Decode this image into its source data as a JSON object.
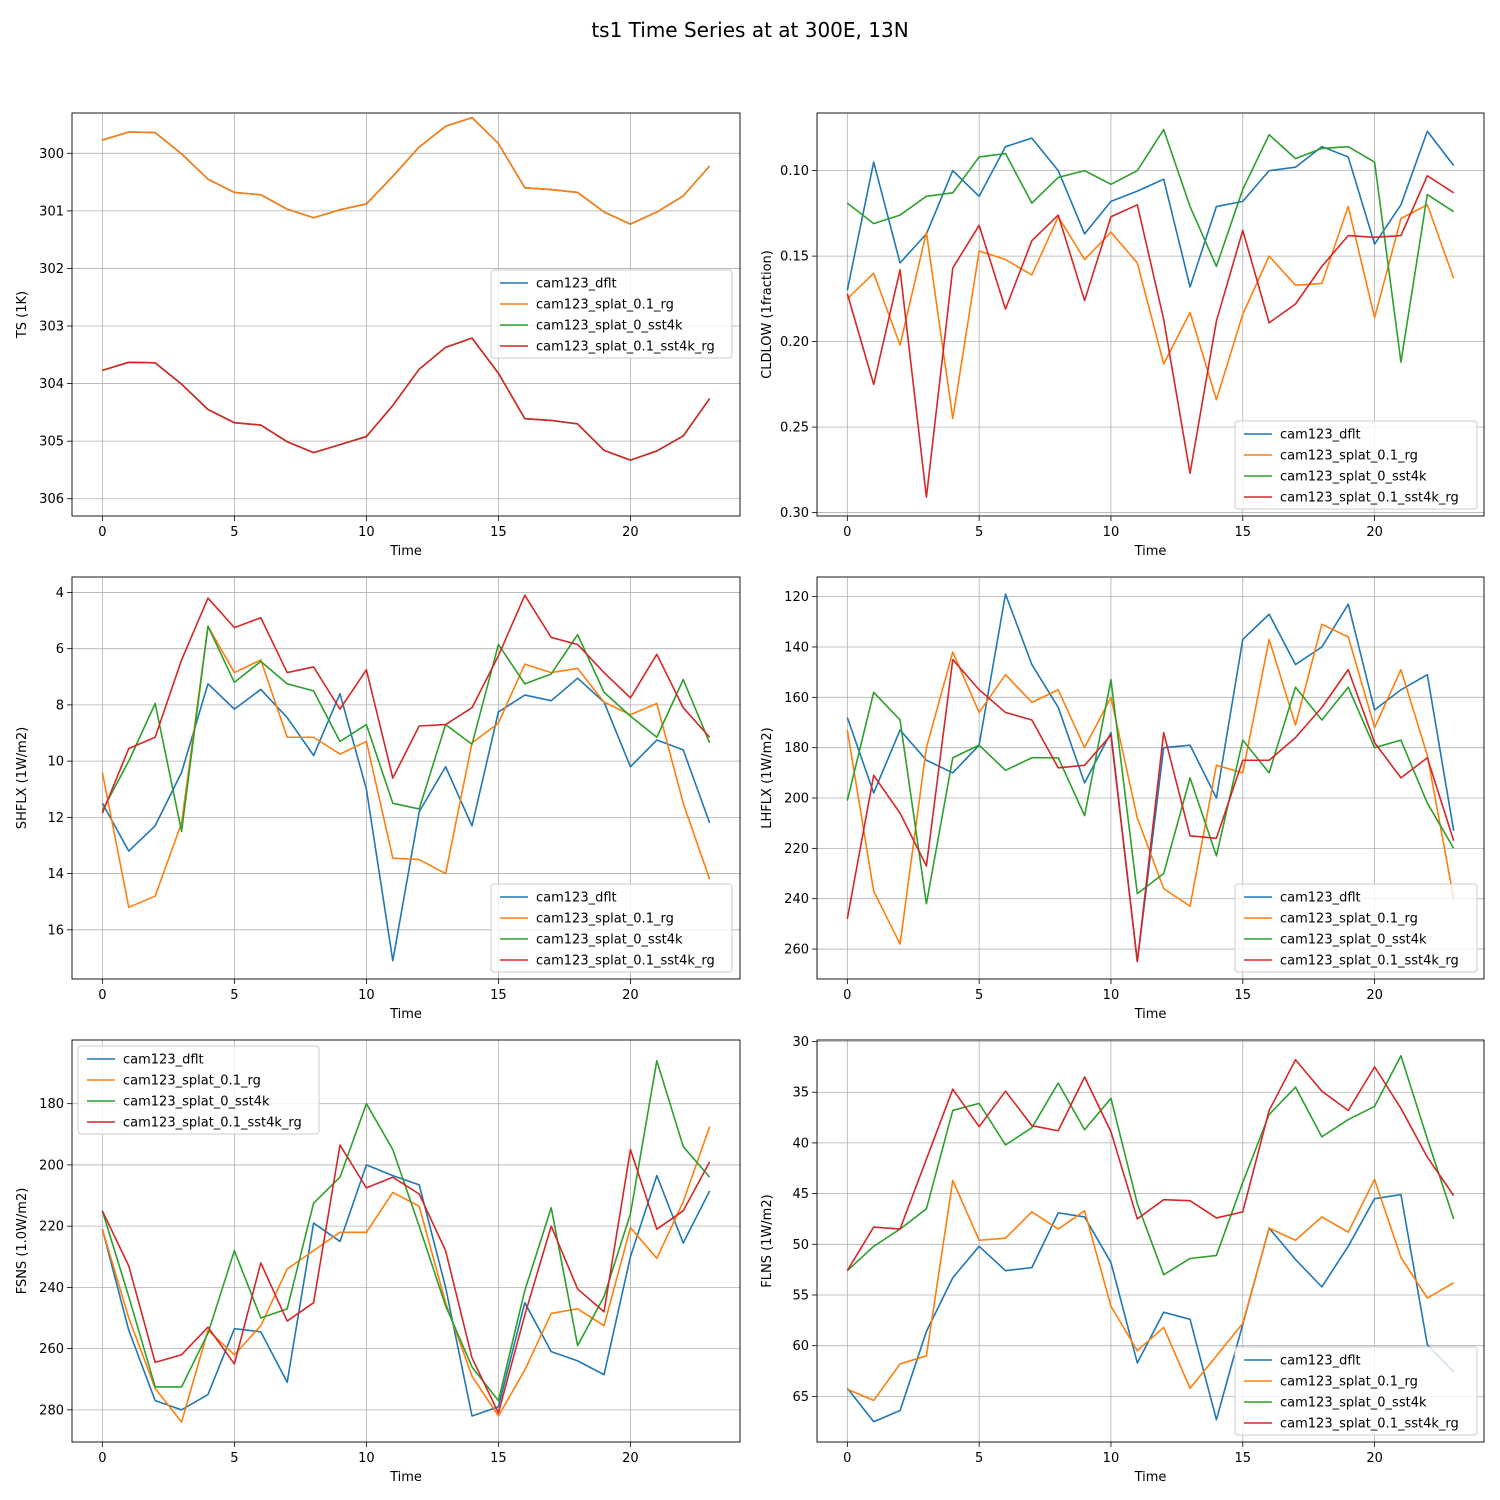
{
  "figure": {
    "title": "ts1 Time Series at at 300E, 13N"
  },
  "colors": {
    "cam123_dflt": "#1f77b4",
    "cam123_splat_0.1_rg": "#ff7f0e",
    "cam123_splat_0_sst4k": "#2ca02c",
    "cam123_splat_0.1_sst4k_rg": "#d62728"
  },
  "chart_data": [
    {
      "type": "line",
      "title": "",
      "xlabel": "Time",
      "ylabel": "TS (1K)",
      "x": [
        0,
        1,
        2,
        3,
        4,
        5,
        6,
        7,
        8,
        9,
        10,
        11,
        12,
        13,
        14,
        15,
        16,
        17,
        18,
        19,
        20,
        21,
        22,
        23
      ],
      "xlim": [
        -1.15,
        24.15
      ],
      "ylim": [
        306.3,
        299.3
      ],
      "y_inverted": true,
      "xticks": [
        0,
        5,
        10,
        15,
        20
      ],
      "yticks": [
        300,
        301,
        302,
        303,
        304,
        305,
        306
      ],
      "grid": true,
      "legend_loc": "center-right",
      "series": [
        {
          "name": "cam123_dflt",
          "values": [
            299.77,
            299.63,
            299.64,
            300.01,
            300.45,
            300.68,
            300.72,
            300.97,
            301.12,
            300.98,
            300.88,
            300.4,
            299.89,
            299.53,
            299.38,
            299.83,
            300.6,
            300.63,
            300.68,
            301.02,
            301.23,
            301.02,
            300.74,
            300.22
          ]
        },
        {
          "name": "cam123_splat_0.1_rg",
          "values": [
            299.77,
            299.63,
            299.64,
            300.01,
            300.45,
            300.68,
            300.72,
            300.97,
            301.12,
            300.98,
            300.88,
            300.4,
            299.89,
            299.53,
            299.38,
            299.83,
            300.6,
            300.63,
            300.68,
            301.02,
            301.23,
            301.02,
            300.74,
            300.22
          ]
        },
        {
          "name": "cam123_splat_0_sst4k",
          "values": [
            303.77,
            303.63,
            303.64,
            304.01,
            304.45,
            304.68,
            304.72,
            305.01,
            305.2,
            305.06,
            304.92,
            304.38,
            303.75,
            303.37,
            303.21,
            303.82,
            304.61,
            304.64,
            304.7,
            305.16,
            305.33,
            305.17,
            304.91,
            304.26
          ]
        },
        {
          "name": "cam123_splat_0.1_sst4k_rg",
          "values": [
            303.77,
            303.63,
            303.64,
            304.01,
            304.45,
            304.68,
            304.72,
            305.01,
            305.2,
            305.06,
            304.92,
            304.38,
            303.75,
            303.37,
            303.21,
            303.82,
            304.61,
            304.64,
            304.7,
            305.16,
            305.33,
            305.17,
            304.91,
            304.26
          ]
        }
      ]
    },
    {
      "type": "line",
      "title": "",
      "xlabel": "Time",
      "ylabel": "CLDLOW (1fraction)",
      "x": [
        0,
        1,
        2,
        3,
        4,
        5,
        6,
        7,
        8,
        9,
        10,
        11,
        12,
        13,
        14,
        15,
        16,
        17,
        18,
        19,
        20,
        21,
        22,
        23
      ],
      "xlim": [
        -1.15,
        24.15
      ],
      "ylim": [
        0.302,
        0.0663
      ],
      "y_inverted": true,
      "xticks": [
        0,
        5,
        10,
        15,
        20
      ],
      "yticks": [
        0.1,
        0.15,
        0.2,
        0.25,
        0.3
      ],
      "grid": true,
      "legend_loc": "lower-right",
      "series": [
        {
          "name": "cam123_dflt",
          "values": [
            0.17,
            0.095,
            0.154,
            0.137,
            0.1,
            0.115,
            0.086,
            0.081,
            0.1,
            0.137,
            0.118,
            0.112,
            0.105,
            0.168,
            0.121,
            0.118,
            0.1,
            0.098,
            0.086,
            0.092,
            0.143,
            0.12,
            0.077,
            0.097
          ]
        },
        {
          "name": "cam123_splat_0.1_rg",
          "values": [
            0.175,
            0.16,
            0.202,
            0.136,
            0.245,
            0.147,
            0.152,
            0.161,
            0.127,
            0.152,
            0.136,
            0.154,
            0.213,
            0.183,
            0.234,
            0.184,
            0.15,
            0.167,
            0.166,
            0.121,
            0.186,
            0.128,
            0.12,
            0.163
          ]
        },
        {
          "name": "cam123_splat_0_sst4k",
          "values": [
            0.119,
            0.131,
            0.126,
            0.115,
            0.113,
            0.092,
            0.09,
            0.119,
            0.104,
            0.1,
            0.108,
            0.1,
            0.076,
            0.121,
            0.156,
            0.111,
            0.079,
            0.093,
            0.087,
            0.086,
            0.095,
            0.212,
            0.114,
            0.124
          ]
        },
        {
          "name": "cam123_splat_0.1_sst4k_rg",
          "values": [
            0.172,
            0.225,
            0.158,
            0.291,
            0.157,
            0.132,
            0.181,
            0.141,
            0.126,
            0.176,
            0.127,
            0.12,
            0.187,
            0.277,
            0.188,
            0.135,
            0.189,
            0.178,
            0.156,
            0.138,
            0.139,
            0.138,
            0.103,
            0.113
          ]
        }
      ]
    },
    {
      "type": "line",
      "title": "",
      "xlabel": "Time",
      "ylabel": "SHFLX (1W/m2)",
      "x": [
        0,
        1,
        2,
        3,
        4,
        5,
        6,
        7,
        8,
        9,
        10,
        11,
        12,
        13,
        14,
        15,
        16,
        17,
        18,
        19,
        20,
        21,
        22,
        23
      ],
      "xlim": [
        -1.15,
        24.15
      ],
      "ylim": [
        17.75,
        3.45
      ],
      "y_inverted": true,
      "xticks": [
        0,
        5,
        10,
        15,
        20
      ],
      "yticks": [
        4,
        6,
        8,
        10,
        12,
        14,
        16
      ],
      "grid": true,
      "legend_loc": "lower-right",
      "series": [
        {
          "name": "cam123_dflt",
          "values": [
            11.5,
            13.2,
            12.3,
            10.4,
            7.25,
            8.15,
            7.45,
            8.45,
            9.8,
            7.6,
            11.0,
            17.1,
            11.8,
            10.2,
            12.3,
            8.25,
            7.65,
            7.85,
            7.05,
            7.9,
            10.2,
            9.25,
            9.6,
            12.2
          ]
        },
        {
          "name": "cam123_splat_0.1_rg",
          "values": [
            10.4,
            15.2,
            14.8,
            12.2,
            5.2,
            6.85,
            6.4,
            9.15,
            9.15,
            9.75,
            9.3,
            13.45,
            13.5,
            14.0,
            9.35,
            8.65,
            6.55,
            6.85,
            6.7,
            7.9,
            8.35,
            7.95,
            11.5,
            14.2
          ]
        },
        {
          "name": "cam123_splat_0_sst4k",
          "values": [
            11.75,
            10.0,
            7.95,
            12.5,
            5.2,
            7.2,
            6.45,
            7.25,
            7.5,
            9.3,
            8.7,
            11.5,
            11.7,
            8.7,
            9.4,
            5.85,
            7.25,
            6.9,
            5.5,
            7.55,
            8.4,
            9.15,
            7.1,
            9.35
          ]
        },
        {
          "name": "cam123_splat_0.1_sst4k_rg",
          "values": [
            11.85,
            9.55,
            9.15,
            6.4,
            4.2,
            5.25,
            4.9,
            6.85,
            6.65,
            8.15,
            6.75,
            10.6,
            8.75,
            8.7,
            8.1,
            6.25,
            4.1,
            5.6,
            5.85,
            6.85,
            7.75,
            6.2,
            8.1,
            9.15
          ]
        }
      ]
    },
    {
      "type": "line",
      "title": "",
      "xlabel": "Time",
      "ylabel": "LHFLX (1W/m2)",
      "x": [
        0,
        1,
        2,
        3,
        4,
        5,
        6,
        7,
        8,
        9,
        10,
        11,
        12,
        13,
        14,
        15,
        16,
        17,
        18,
        19,
        20,
        21,
        22,
        23
      ],
      "xlim": [
        -1.15,
        24.15
      ],
      "ylim": [
        271.9,
        112.2
      ],
      "y_inverted": true,
      "xticks": [
        0,
        5,
        10,
        15,
        20
      ],
      "yticks": [
        120,
        140,
        160,
        180,
        200,
        220,
        240,
        260
      ],
      "grid": true,
      "legend_loc": "lower-right",
      "series": [
        {
          "name": "cam123_dflt",
          "values": [
            168,
            198,
            173,
            185,
            190,
            179,
            119,
            147,
            164,
            194,
            174,
            265,
            180,
            179,
            200,
            137,
            127,
            147,
            140,
            123,
            165,
            157,
            151,
            213
          ]
        },
        {
          "name": "cam123_splat_0.1_rg",
          "values": [
            173,
            237,
            258,
            180,
            142,
            166,
            151,
            162,
            157,
            180,
            160,
            208,
            236,
            243,
            187,
            190,
            137,
            171,
            131,
            136,
            172,
            149,
            183,
            240
          ]
        },
        {
          "name": "cam123_splat_0_sst4k",
          "values": [
            201,
            158,
            169,
            242,
            184,
            179,
            189,
            184,
            184,
            207,
            153,
            238,
            230,
            192,
            223,
            177,
            190,
            156,
            169,
            156,
            180,
            177,
            202,
            220
          ]
        },
        {
          "name": "cam123_splat_0.1_sst4k_rg",
          "values": [
            248,
            191,
            206,
            227,
            145,
            157,
            166,
            169,
            188,
            187,
            175,
            265,
            174,
            215,
            216,
            185,
            185,
            176,
            164,
            149,
            178,
            192,
            184,
            217
          ]
        }
      ]
    },
    {
      "type": "line",
      "title": "",
      "xlabel": "Time",
      "ylabel": "FSNS (1.0W/m2)",
      "x": [
        0,
        1,
        2,
        3,
        4,
        5,
        6,
        7,
        8,
        9,
        10,
        11,
        12,
        13,
        14,
        15,
        16,
        17,
        18,
        19,
        20,
        21,
        22,
        23
      ],
      "xlim": [
        -1.15,
        24.15
      ],
      "ylim": [
        290.5,
        159.2
      ],
      "y_inverted": true,
      "xticks": [
        0,
        5,
        10,
        15,
        20
      ],
      "yticks": [
        180,
        200,
        220,
        240,
        260,
        280
      ],
      "grid": true,
      "legend_loc": "top-left",
      "series": [
        {
          "name": "cam123_dflt",
          "values": [
            221,
            254,
            277,
            280,
            275,
            253.5,
            254.5,
            271,
            219,
            225,
            200,
            203.5,
            206.5,
            240,
            282,
            279,
            245,
            261,
            264,
            268.5,
            230,
            203.5,
            225.5,
            208.5
          ]
        },
        {
          "name": "cam123_splat_0.1_rg",
          "values": [
            221,
            250,
            273,
            284,
            254,
            262,
            252.5,
            234,
            228,
            222,
            222,
            209,
            213.5,
            245,
            269,
            282,
            267,
            248.5,
            247,
            252.5,
            220.5,
            230.5,
            212,
            187.5
          ]
        },
        {
          "name": "cam123_splat_0_sst4k",
          "values": [
            215,
            243,
            272.5,
            272.5,
            255,
            228,
            250,
            247,
            212.5,
            204,
            180,
            195,
            220,
            246,
            266,
            277,
            241,
            214,
            259,
            243,
            216,
            166,
            194,
            204
          ]
        },
        {
          "name": "cam123_splat_0.1_sst4k_rg",
          "values": [
            215,
            233,
            264.5,
            262,
            253,
            265,
            232,
            251,
            245,
            193.5,
            207.5,
            204,
            209.5,
            228,
            263,
            281,
            249,
            220,
            240.5,
            248,
            195,
            221,
            215,
            199
          ]
        }
      ]
    },
    {
      "type": "line",
      "title": "",
      "xlabel": "Time",
      "ylabel": "FLNS (1W/m2)",
      "x": [
        0,
        1,
        2,
        3,
        4,
        5,
        6,
        7,
        8,
        9,
        10,
        11,
        12,
        13,
        14,
        15,
        16,
        17,
        18,
        19,
        20,
        21,
        22,
        23
      ],
      "xlim": [
        -1.15,
        24.15
      ],
      "ylim": [
        69.5,
        29.85
      ],
      "y_inverted": true,
      "xticks": [
        0,
        5,
        10,
        15,
        20
      ],
      "yticks": [
        30,
        35,
        40,
        45,
        50,
        55,
        60,
        65
      ],
      "grid": true,
      "legend_loc": "lower-right",
      "series": [
        {
          "name": "cam123_dflt",
          "values": [
            64.2,
            67.5,
            66.4,
            58.6,
            53.3,
            50.2,
            52.6,
            52.3,
            46.9,
            47.3,
            51.8,
            61.7,
            56.7,
            57.4,
            67.3,
            57.9,
            48.4,
            51.5,
            54.2,
            50.2,
            45.5,
            45.1,
            59.9,
            62.6
          ]
        },
        {
          "name": "cam123_splat_0.1_rg",
          "values": [
            64.3,
            65.4,
            61.8,
            61.0,
            43.7,
            49.6,
            49.4,
            46.8,
            48.5,
            46.7,
            56.1,
            60.5,
            58.2,
            64.2,
            61.0,
            57.8,
            48.4,
            49.6,
            47.3,
            48.8,
            43.6,
            51.3,
            55.3,
            53.8
          ]
        },
        {
          "name": "cam123_splat_0_sst4k",
          "values": [
            52.6,
            50.2,
            48.5,
            46.5,
            36.8,
            36.1,
            40.2,
            38.5,
            34.1,
            38.7,
            35.6,
            46.0,
            53.0,
            51.4,
            51.1,
            43.9,
            37.2,
            34.5,
            39.4,
            37.7,
            36.4,
            31.4,
            39.6,
            47.5
          ]
        },
        {
          "name": "cam123_splat_0.1_sst4k_rg",
          "values": [
            52.6,
            48.3,
            48.5,
            41.6,
            34.7,
            38.4,
            34.9,
            38.3,
            38.8,
            33.5,
            38.9,
            47.5,
            45.6,
            45.7,
            47.4,
            46.8,
            36.8,
            31.8,
            34.9,
            36.8,
            32.5,
            36.6,
            41.4,
            45.2
          ]
        }
      ]
    }
  ]
}
